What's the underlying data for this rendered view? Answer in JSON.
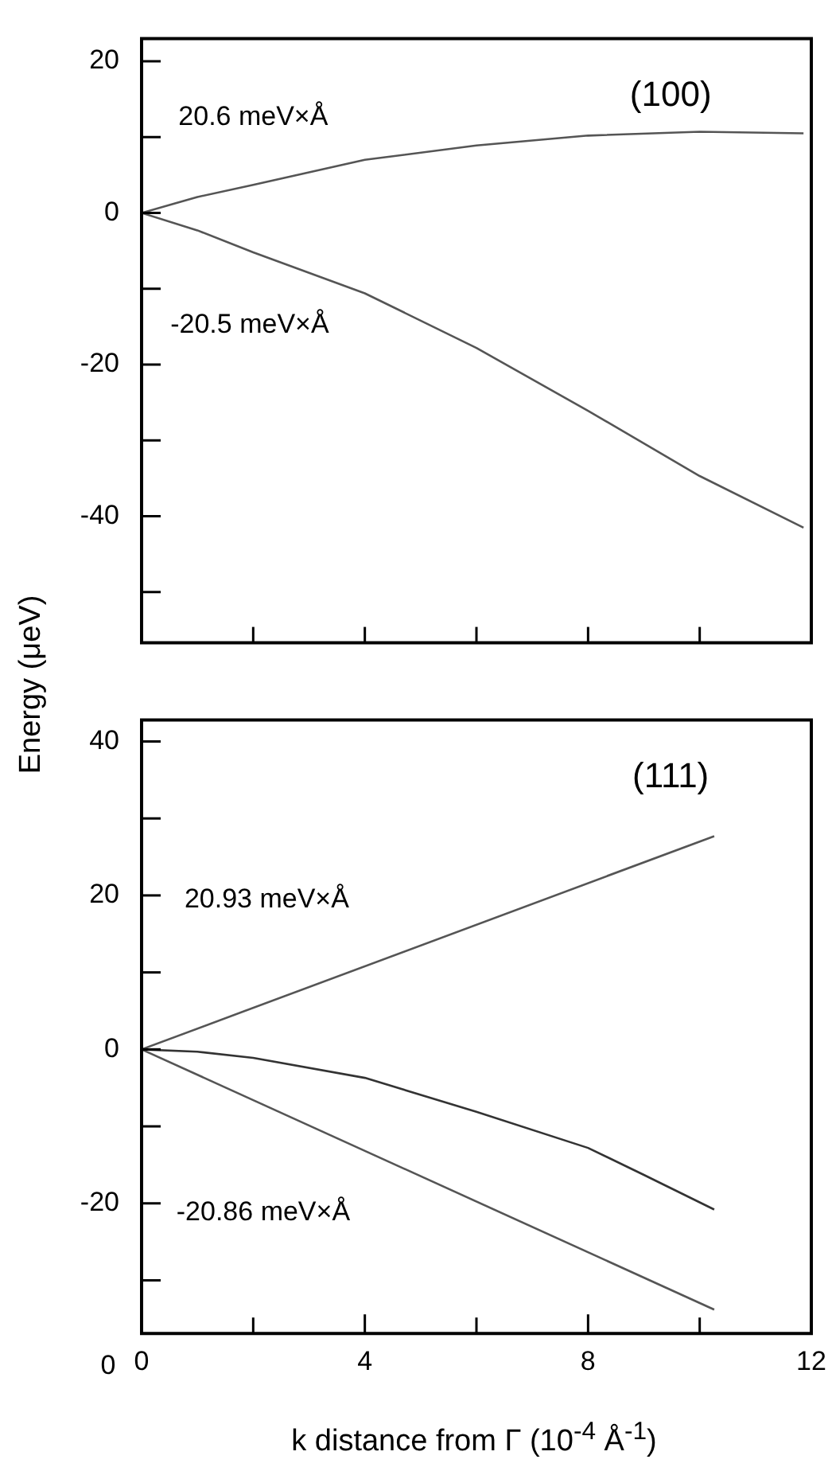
{
  "chart_data": [
    {
      "type": "line",
      "title": "(100)",
      "ylabel": "Energy  (μeV)",
      "tick_labels": "y",
      "grid": false,
      "legend": false,
      "marker": "none",
      "line_style": "solid",
      "xlim": [
        0,
        12
      ],
      "xticks": [
        {
          "value": 0,
          "label": null
        },
        {
          "value": 2,
          "label": null
        },
        {
          "value": 4,
          "label": null
        },
        {
          "value": 6,
          "label": null
        },
        {
          "value": 8,
          "label": null
        },
        {
          "value": 10,
          "label": null
        },
        {
          "value": 12,
          "label": null
        }
      ],
      "ylim": [
        -56.7,
        23
      ],
      "yticks": [
        {
          "value": -50,
          "label": null
        },
        -40,
        {
          "value": -30,
          "label": null
        },
        -20,
        {
          "value": -10,
          "label": null
        },
        0,
        {
          "value": 10,
          "label": null
        },
        20
      ],
      "series": [
        {
          "color": "#555555",
          "x": [
            0,
            1,
            2,
            4,
            6,
            8,
            10,
            11.86
          ],
          "values": [
            0,
            2.1,
            3.7,
            7.0,
            8.9,
            10.2,
            10.7,
            10.5
          ]
        },
        {
          "color": "#555555",
          "x": [
            0,
            1,
            2,
            4,
            6,
            8,
            10,
            11.86
          ],
          "values": [
            0,
            -2.3,
            -5.2,
            -10.6,
            -17.8,
            -26.1,
            -34.7,
            -41.5
          ]
        }
      ],
      "annotations": [
        "20.6 meV×Å",
        "-20.5 meV×Å"
      ]
    },
    {
      "type": "line",
      "title": "(111)",
      "xlabel": "k distance from Γ (10$^{-4}$ Å$^{-1}$)",
      "grid": false,
      "legend": false,
      "marker": "none",
      "line_style": "solid",
      "xlim": [
        0,
        12
      ],
      "xticks": [
        0,
        {
          "value": 2,
          "label": null
        },
        4,
        {
          "value": 6,
          "label": null
        },
        8,
        {
          "value": 10,
          "label": null
        },
        12
      ],
      "ylim": [
        -36.9,
        42.8
      ],
      "yticks": [
        {
          "value": -30,
          "label": null
        },
        -20,
        {
          "value": -10,
          "label": null
        },
        0,
        {
          "value": 10,
          "label": null
        },
        20,
        {
          "value": 30,
          "label": null
        },
        40
      ],
      "series": [
        {
          "color": "#555555",
          "x": [
            0,
            10.26
          ],
          "values": [
            0,
            27.7
          ]
        },
        {
          "color": "#333333",
          "x": [
            0,
            1,
            2,
            4,
            6,
            8,
            9,
            10.26
          ],
          "values": [
            0,
            -0.3,
            -1.1,
            -3.7,
            -8.1,
            -12.8,
            -16.3,
            -20.8
          ]
        },
        {
          "color": "#555555",
          "x": [
            0,
            10.26
          ],
          "values": [
            0,
            -33.8
          ]
        }
      ],
      "annotations": [
        "20.93 meV×Å",
        "-20.86 meV×Å",
        "0"
      ]
    }
  ]
}
